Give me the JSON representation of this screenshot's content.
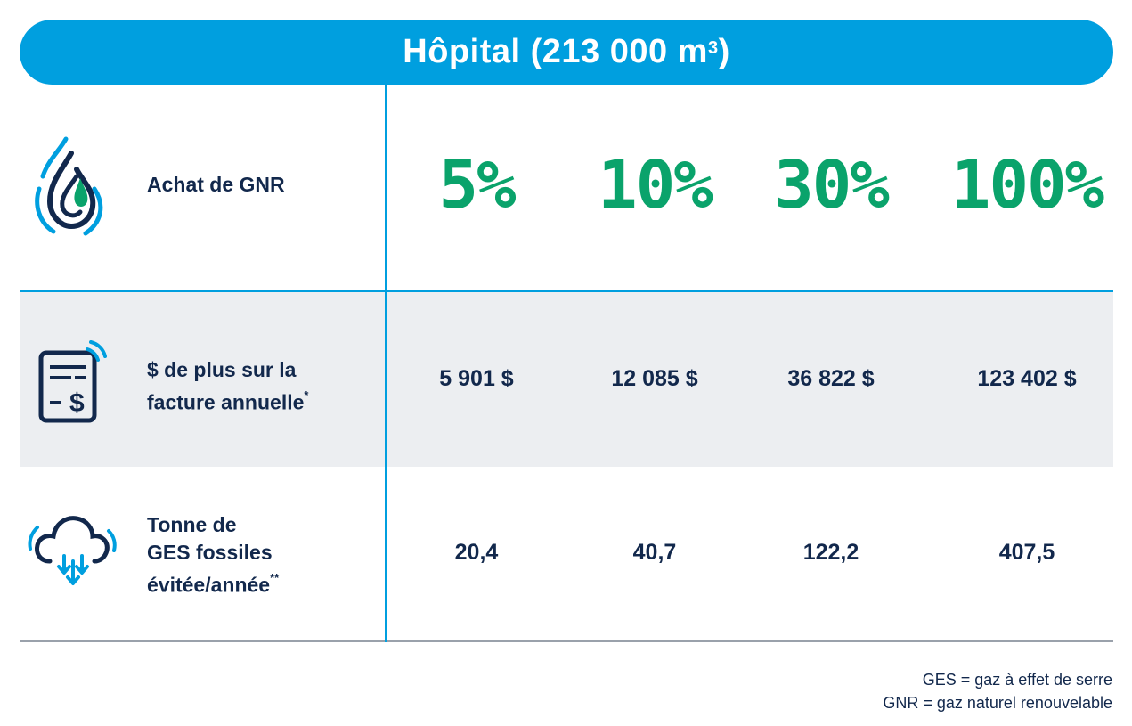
{
  "header": {
    "title": "Hôpital (213 000 m",
    "title_sup": "3",
    "title_end": ")"
  },
  "rows": [
    {
      "label_lines": [
        "Achat de GNR"
      ],
      "values": [
        "5%",
        "10%",
        "30%",
        "100%"
      ]
    },
    {
      "label_lines": [
        "$ de plus sur la",
        "facture annuelle"
      ],
      "label_sup": "*",
      "values": [
        "5 901 $",
        "12 085 $",
        "36 822 $",
        "123 402 $"
      ]
    },
    {
      "label_lines": [
        "Tonne de",
        "GES fossiles",
        "évitée/année"
      ],
      "label_sup": "**",
      "values": [
        "20,4",
        "40,7",
        "122,2",
        "407,5"
      ]
    }
  ],
  "icons": {
    "row1": "renewable-gas-flame-icon",
    "row2": "invoice-dollar-icon",
    "row3": "cloud-reduction-icon"
  },
  "colors": {
    "header_bg": "#009fdf",
    "percent_green": "#0aa36b",
    "text_navy": "#12284c",
    "row_grey": "#eceef1",
    "line_blue": "#009fdf"
  },
  "notes": [
    "GES = gaz à effet de serre",
    "GNR = gaz naturel renouvelable"
  ]
}
